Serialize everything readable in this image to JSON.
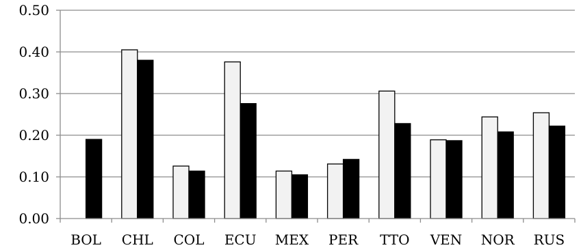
{
  "chart_data": {
    "type": "bar",
    "title": "",
    "xlabel": "",
    "ylabel": "",
    "ylim": [
      0,
      0.5
    ],
    "yticks": [
      "0.00",
      "0.10",
      "0.20",
      "0.30",
      "0.40",
      "0.50"
    ],
    "grid": true,
    "legend": "none",
    "categories": [
      "BOL",
      "CHL",
      "COL",
      "ECU",
      "MEX",
      "PER",
      "TTO",
      "VEN",
      "NOR",
      "RUS"
    ],
    "series": [
      {
        "color": "#f2f2f2",
        "values": [
          null,
          0.405,
          0.126,
          0.376,
          0.114,
          0.131,
          0.306,
          0.189,
          0.244,
          0.254
        ]
      },
      {
        "color": "#000000",
        "values": [
          0.19,
          0.38,
          0.114,
          0.276,
          0.105,
          0.142,
          0.228,
          0.187,
          0.208,
          0.222
        ]
      }
    ]
  }
}
